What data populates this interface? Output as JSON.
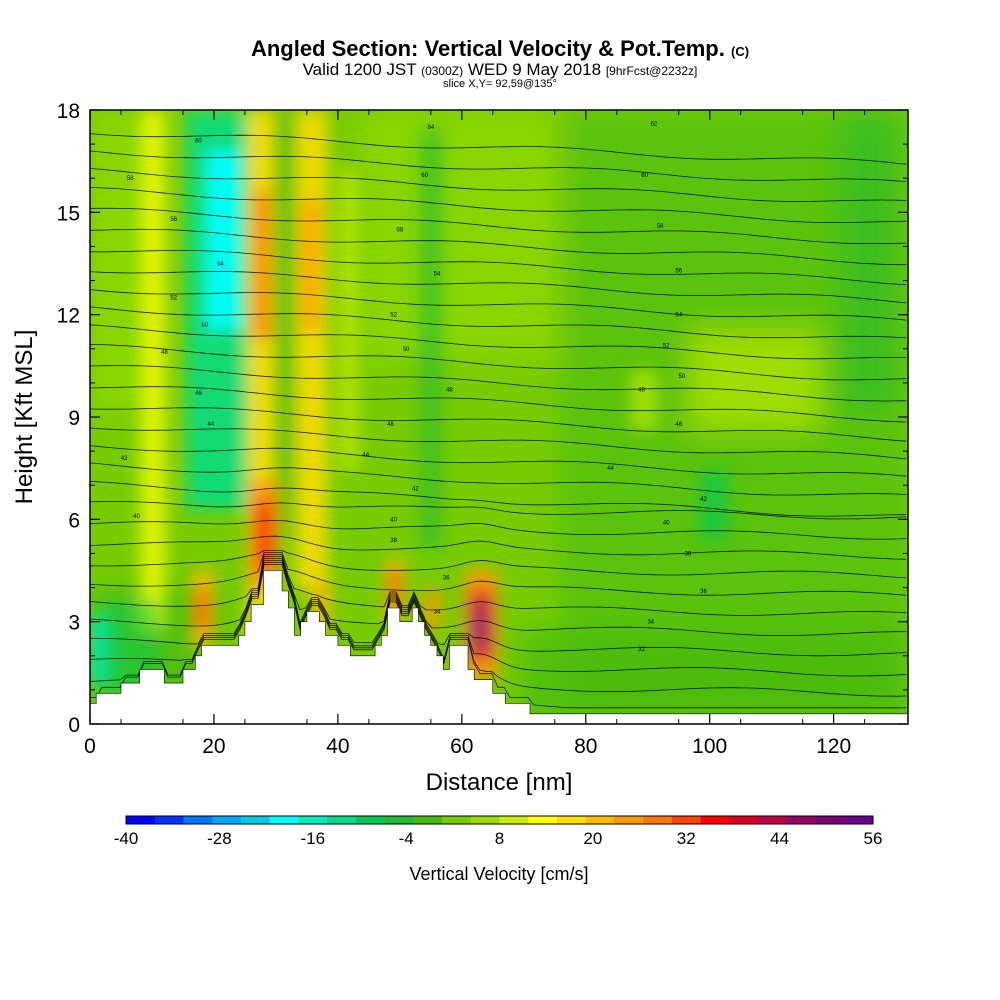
{
  "title": {
    "main": "Angled Section: Vertical Velocity & Pot.Temp.",
    "main_mark": "(C)",
    "valid_a": "Valid 1200 JST",
    "valid_b": "(0300Z)",
    "valid_c": "WED 9 May 2018",
    "valid_d": "[9hrFcst@2232z]",
    "slice": "slice X,Y= 92,59@135°"
  },
  "chart_data": {
    "type": "heatmap",
    "xlabel": "Distance [nm]",
    "ylabel": "Height [Kft MSL]",
    "xlim": [
      0,
      132
    ],
    "ylim": [
      0,
      18
    ],
    "x_ticks": [
      0,
      20,
      40,
      60,
      80,
      100,
      120
    ],
    "y_ticks": [
      0,
      3,
      6,
      9,
      12,
      15,
      18
    ],
    "colorbar": {
      "label": "Vertical Velocity [cm/s]",
      "range": [
        -40,
        56
      ],
      "tick_labels": [
        -40,
        -28,
        -16,
        -4,
        8,
        20,
        32,
        44,
        56
      ],
      "colors": [
        "#0000ff",
        "#0033ff",
        "#0077ff",
        "#00aaff",
        "#00ccee",
        "#00ffff",
        "#00eebb",
        "#00dd88",
        "#00cc55",
        "#22bb33",
        "#44bb11",
        "#77cc00",
        "#99dd00",
        "#ccee00",
        "#ffff00",
        "#ffdd00",
        "#ffbb00",
        "#ff9900",
        "#ff7700",
        "#ff4400",
        "#ff0000",
        "#dd0022",
        "#bb0044",
        "#990066",
        "#770077",
        "#660088"
      ]
    },
    "updrafts": [
      {
        "x": 27.5,
        "y": 6.0,
        "peak": 40
      },
      {
        "x": 63.0,
        "y": 3.0,
        "peak": 52
      },
      {
        "x": 19.0,
        "y": 3.5,
        "peak": 24
      },
      {
        "x": 28.0,
        "y": 14.0,
        "peak": 30
      },
      {
        "x": 36.0,
        "y": 14.0,
        "peak": 26
      },
      {
        "x": 49.0,
        "y": 4.0,
        "peak": 24
      },
      {
        "x": 56.5,
        "y": 3.5,
        "peak": 22
      }
    ],
    "downdrafts": [
      {
        "x": 23.5,
        "y": 15.0,
        "peak": -26
      },
      {
        "x": 1.0,
        "y": 2.0,
        "peak": -18
      }
    ],
    "terrain_kft": [
      [
        0,
        0.6
      ],
      [
        1,
        0.6
      ],
      [
        1,
        0.9
      ],
      [
        5,
        0.9
      ],
      [
        5,
        1.2
      ],
      [
        8,
        1.2
      ],
      [
        8,
        1.6
      ],
      [
        12,
        1.6
      ],
      [
        12,
        1.2
      ],
      [
        15,
        1.2
      ],
      [
        15,
        1.6
      ],
      [
        17,
        1.6
      ],
      [
        17,
        2.0
      ],
      [
        18,
        2.0
      ],
      [
        18,
        2.3
      ],
      [
        24,
        2.3
      ],
      [
        24,
        2.6
      ],
      [
        25,
        2.6
      ],
      [
        25,
        3.0
      ],
      [
        26,
        3.0
      ],
      [
        26,
        3.5
      ],
      [
        28,
        3.5
      ],
      [
        28,
        4.5
      ],
      [
        31,
        4.5
      ],
      [
        31,
        3.9
      ],
      [
        32,
        3.9
      ],
      [
        32,
        3.4
      ],
      [
        33,
        3.4
      ],
      [
        33,
        2.6
      ],
      [
        34,
        2.6
      ],
      [
        34,
        3.0
      ],
      [
        35,
        3.0
      ],
      [
        35,
        3.3
      ],
      [
        37,
        3.3
      ],
      [
        37,
        3.0
      ],
      [
        38,
        3.0
      ],
      [
        38,
        2.6
      ],
      [
        40,
        2.6
      ],
      [
        40,
        2.3
      ],
      [
        42,
        2.3
      ],
      [
        42,
        2.0
      ],
      [
        46,
        2.0
      ],
      [
        46,
        2.3
      ],
      [
        47,
        2.3
      ],
      [
        47,
        2.6
      ],
      [
        48,
        2.6
      ],
      [
        48,
        3.4
      ],
      [
        50,
        3.4
      ],
      [
        50,
        3.0
      ],
      [
        52,
        3.0
      ],
      [
        52,
        3.4
      ],
      [
        53,
        3.4
      ],
      [
        53,
        3.0
      ],
      [
        54,
        3.0
      ],
      [
        54,
        2.6
      ],
      [
        55,
        2.6
      ],
      [
        55,
        2.3
      ],
      [
        56,
        2.3
      ],
      [
        56,
        2.0
      ],
      [
        57,
        2.0
      ],
      [
        57,
        1.6
      ],
      [
        58,
        1.6
      ],
      [
        58,
        2.3
      ],
      [
        61,
        2.3
      ],
      [
        61,
        1.6
      ],
      [
        62,
        1.6
      ],
      [
        62,
        1.3
      ],
      [
        65,
        1.3
      ],
      [
        65,
        0.9
      ],
      [
        67,
        0.9
      ],
      [
        67,
        0.6
      ],
      [
        71,
        0.6
      ],
      [
        71,
        0.3
      ],
      [
        132,
        0.3
      ]
    ],
    "contour_labels": [
      {
        "x": 17.5,
        "y": 17.1,
        "text": "60"
      },
      {
        "x": 6.5,
        "y": 16.0,
        "text": "58"
      },
      {
        "x": 13.5,
        "y": 14.8,
        "text": "56"
      },
      {
        "x": 21.0,
        "y": 13.5,
        "text": "54"
      },
      {
        "x": 13.5,
        "y": 12.5,
        "text": "52"
      },
      {
        "x": 18.5,
        "y": 11.7,
        "text": "50"
      },
      {
        "x": 12.0,
        "y": 10.9,
        "text": "48"
      },
      {
        "x": 17.5,
        "y": 9.7,
        "text": "46"
      },
      {
        "x": 19.5,
        "y": 8.8,
        "text": "44"
      },
      {
        "x": 5.5,
        "y": 7.8,
        "text": "42"
      },
      {
        "x": 7.5,
        "y": 6.1,
        "text": "40"
      },
      {
        "x": 55.0,
        "y": 17.5,
        "text": "64"
      },
      {
        "x": 54.0,
        "y": 16.1,
        "text": "60"
      },
      {
        "x": 50.0,
        "y": 14.5,
        "text": "58"
      },
      {
        "x": 56.0,
        "y": 13.2,
        "text": "54"
      },
      {
        "x": 49.0,
        "y": 12.0,
        "text": "52"
      },
      {
        "x": 51.0,
        "y": 11.0,
        "text": "50"
      },
      {
        "x": 58.0,
        "y": 9.8,
        "text": "48"
      },
      {
        "x": 48.5,
        "y": 8.8,
        "text": "46"
      },
      {
        "x": 44.5,
        "y": 7.9,
        "text": "44"
      },
      {
        "x": 52.5,
        "y": 6.9,
        "text": "42"
      },
      {
        "x": 49.0,
        "y": 6.0,
        "text": "40"
      },
      {
        "x": 49.0,
        "y": 5.4,
        "text": "38"
      },
      {
        "x": 57.5,
        "y": 4.3,
        "text": "36"
      },
      {
        "x": 56.0,
        "y": 3.3,
        "text": "34"
      },
      {
        "x": 91.0,
        "y": 17.6,
        "text": "62"
      },
      {
        "x": 89.5,
        "y": 16.1,
        "text": "60"
      },
      {
        "x": 92.0,
        "y": 14.6,
        "text": "58"
      },
      {
        "x": 95.0,
        "y": 13.3,
        "text": "56"
      },
      {
        "x": 95.0,
        "y": 12.0,
        "text": "54"
      },
      {
        "x": 93.0,
        "y": 11.1,
        "text": "52"
      },
      {
        "x": 95.5,
        "y": 10.2,
        "text": "50"
      },
      {
        "x": 89.0,
        "y": 9.8,
        "text": "48"
      },
      {
        "x": 95.0,
        "y": 8.8,
        "text": "46"
      },
      {
        "x": 84.0,
        "y": 7.5,
        "text": "44"
      },
      {
        "x": 99.0,
        "y": 6.6,
        "text": "42"
      },
      {
        "x": 93.0,
        "y": 5.9,
        "text": "40"
      },
      {
        "x": 96.5,
        "y": 5.0,
        "text": "38"
      },
      {
        "x": 99.0,
        "y": 3.9,
        "text": "36"
      },
      {
        "x": 90.5,
        "y": 3.0,
        "text": "34"
      },
      {
        "x": 89.0,
        "y": 2.2,
        "text": "32"
      }
    ]
  }
}
